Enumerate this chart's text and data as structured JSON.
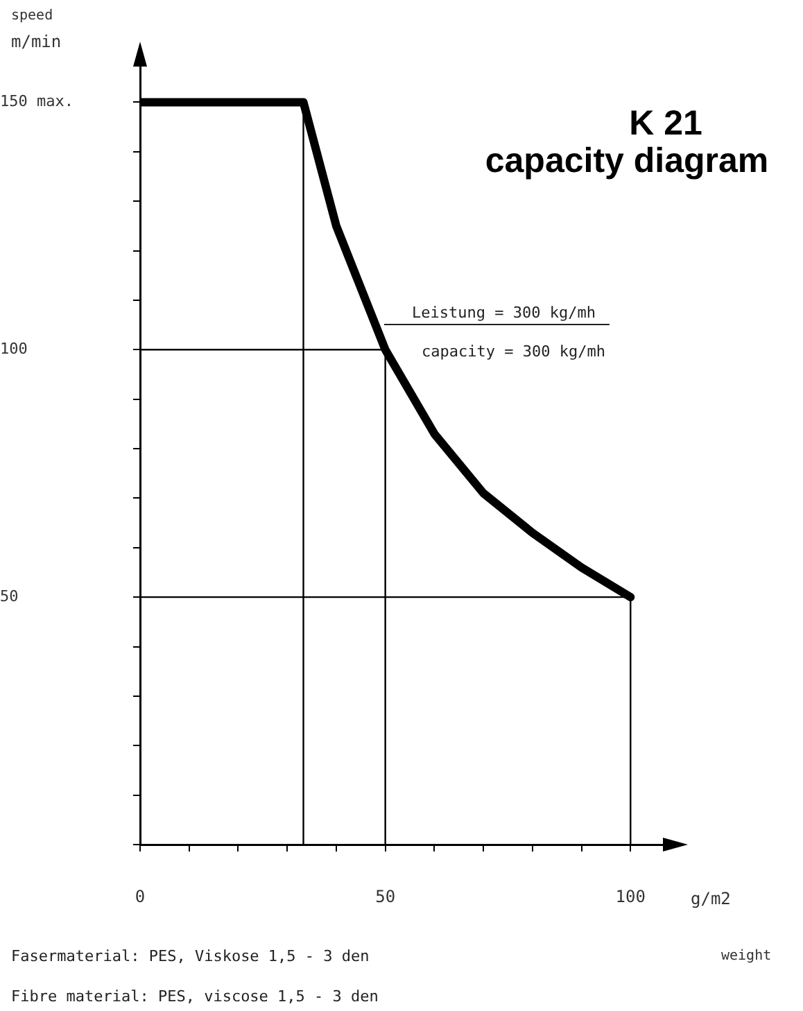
{
  "chart_data": {
    "type": "line",
    "title": "K 21",
    "subtitle": "capacity diagram",
    "xlabel": "g/m2\nweight",
    "ylabel": "speed\nm/min",
    "xlim": [
      0,
      110
    ],
    "ylim": [
      0,
      160
    ],
    "xticks": [
      0,
      {
        "value": 10,
        "label": null
      },
      {
        "value": 20,
        "label": null
      },
      {
        "value": 30,
        "label": null
      },
      {
        "value": 40,
        "label": null
      },
      50,
      {
        "value": 60,
        "label": null
      },
      {
        "value": 70,
        "label": null
      },
      {
        "value": 80,
        "label": null
      },
      {
        "value": 90,
        "label": null
      },
      100
    ],
    "yticks": [
      {
        "value": 0,
        "label": null
      },
      {
        "value": 10,
        "label": null
      },
      {
        "value": 20,
        "label": null
      },
      {
        "value": 30,
        "label": null
      },
      {
        "value": 40,
        "label": null
      },
      50,
      {
        "value": 60,
        "label": null
      },
      {
        "value": 70,
        "label": null
      },
      {
        "value": 80,
        "label": null
      },
      {
        "value": 90,
        "label": null
      },
      100,
      {
        "value": 110,
        "label": null
      },
      {
        "value": 120,
        "label": null
      },
      {
        "value": 130,
        "label": null
      },
      {
        "value": 140,
        "label": null
      },
      {
        "value": 150,
        "label": "150 max."
      }
    ],
    "series": [
      {
        "color": "#000000",
        "x": [
          0,
          33.3,
          40,
          50,
          60,
          70,
          80,
          90,
          100
        ],
        "values": [
          150,
          150,
          125,
          100,
          83,
          71,
          63,
          56,
          50
        ]
      },
      {
        "color": "#000000",
        "x": [
          33.3,
          33.3
        ],
        "values": [
          0,
          150
        ]
      },
      {
        "color": "#000000",
        "x": [
          0,
          50,
          50
        ],
        "values": [
          100,
          100,
          0
        ]
      },
      {
        "color": "#000000",
        "x": [
          0,
          100,
          100
        ],
        "values": [
          50,
          50,
          0
        ]
      }
    ],
    "annotations": [
      "Leistung = 300 kg/mh",
      "capacity = 300 kg/mh",
      "Fasermaterial: PES, Viskose 1,5 - 3 den",
      "Fibre material: PES, viscose 1,5 - 3 den"
    ],
    "grid": false,
    "legend": false,
    "marker": "none",
    "line_style": "solid"
  }
}
